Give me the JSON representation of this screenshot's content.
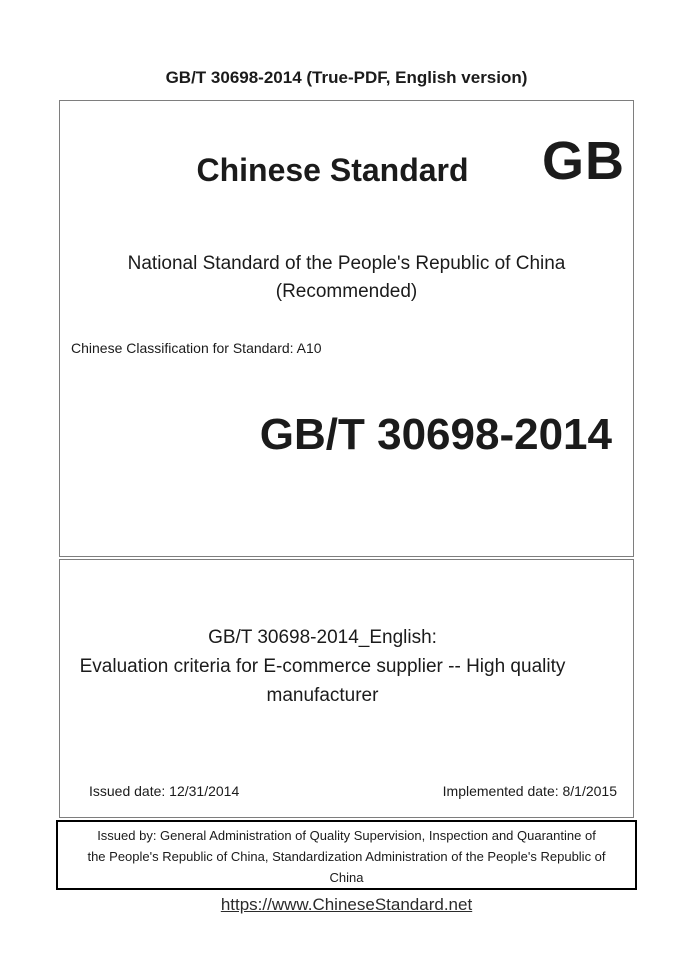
{
  "header": {
    "title": "GB/T 30698-2014 (True-PDF, English version)"
  },
  "cover": {
    "title": "Chinese Standard",
    "logo": "GB",
    "national_line": "National Standard of the People's Republic of China",
    "recommended_line": "(Recommended)",
    "classification": "Chinese Classification for Standard: A10",
    "standard_number": "GB/T 30698-2014"
  },
  "english": {
    "title": "GB/T 30698-2014_English:",
    "subtitle": "Evaluation criteria for E-commerce supplier -- High quality manufacturer",
    "issued_date": "Issued date: 12/31/2014",
    "implemented_date": "Implemented date: 8/1/2015"
  },
  "issuer": {
    "lines": [
      "Issued by: General Administration of Quality Supervision, Inspection and Quarantine of",
      "the People's Republic of China, Standardization Administration of the People's Republic of",
      "China"
    ]
  },
  "footer": {
    "link": "https://www.ChineseStandard.net"
  },
  "colors": {
    "text": "#1b1b1b",
    "thin_box_border": "#7e7e7e",
    "issuer_box_border": "#000000",
    "link": "#2b2b2b"
  }
}
